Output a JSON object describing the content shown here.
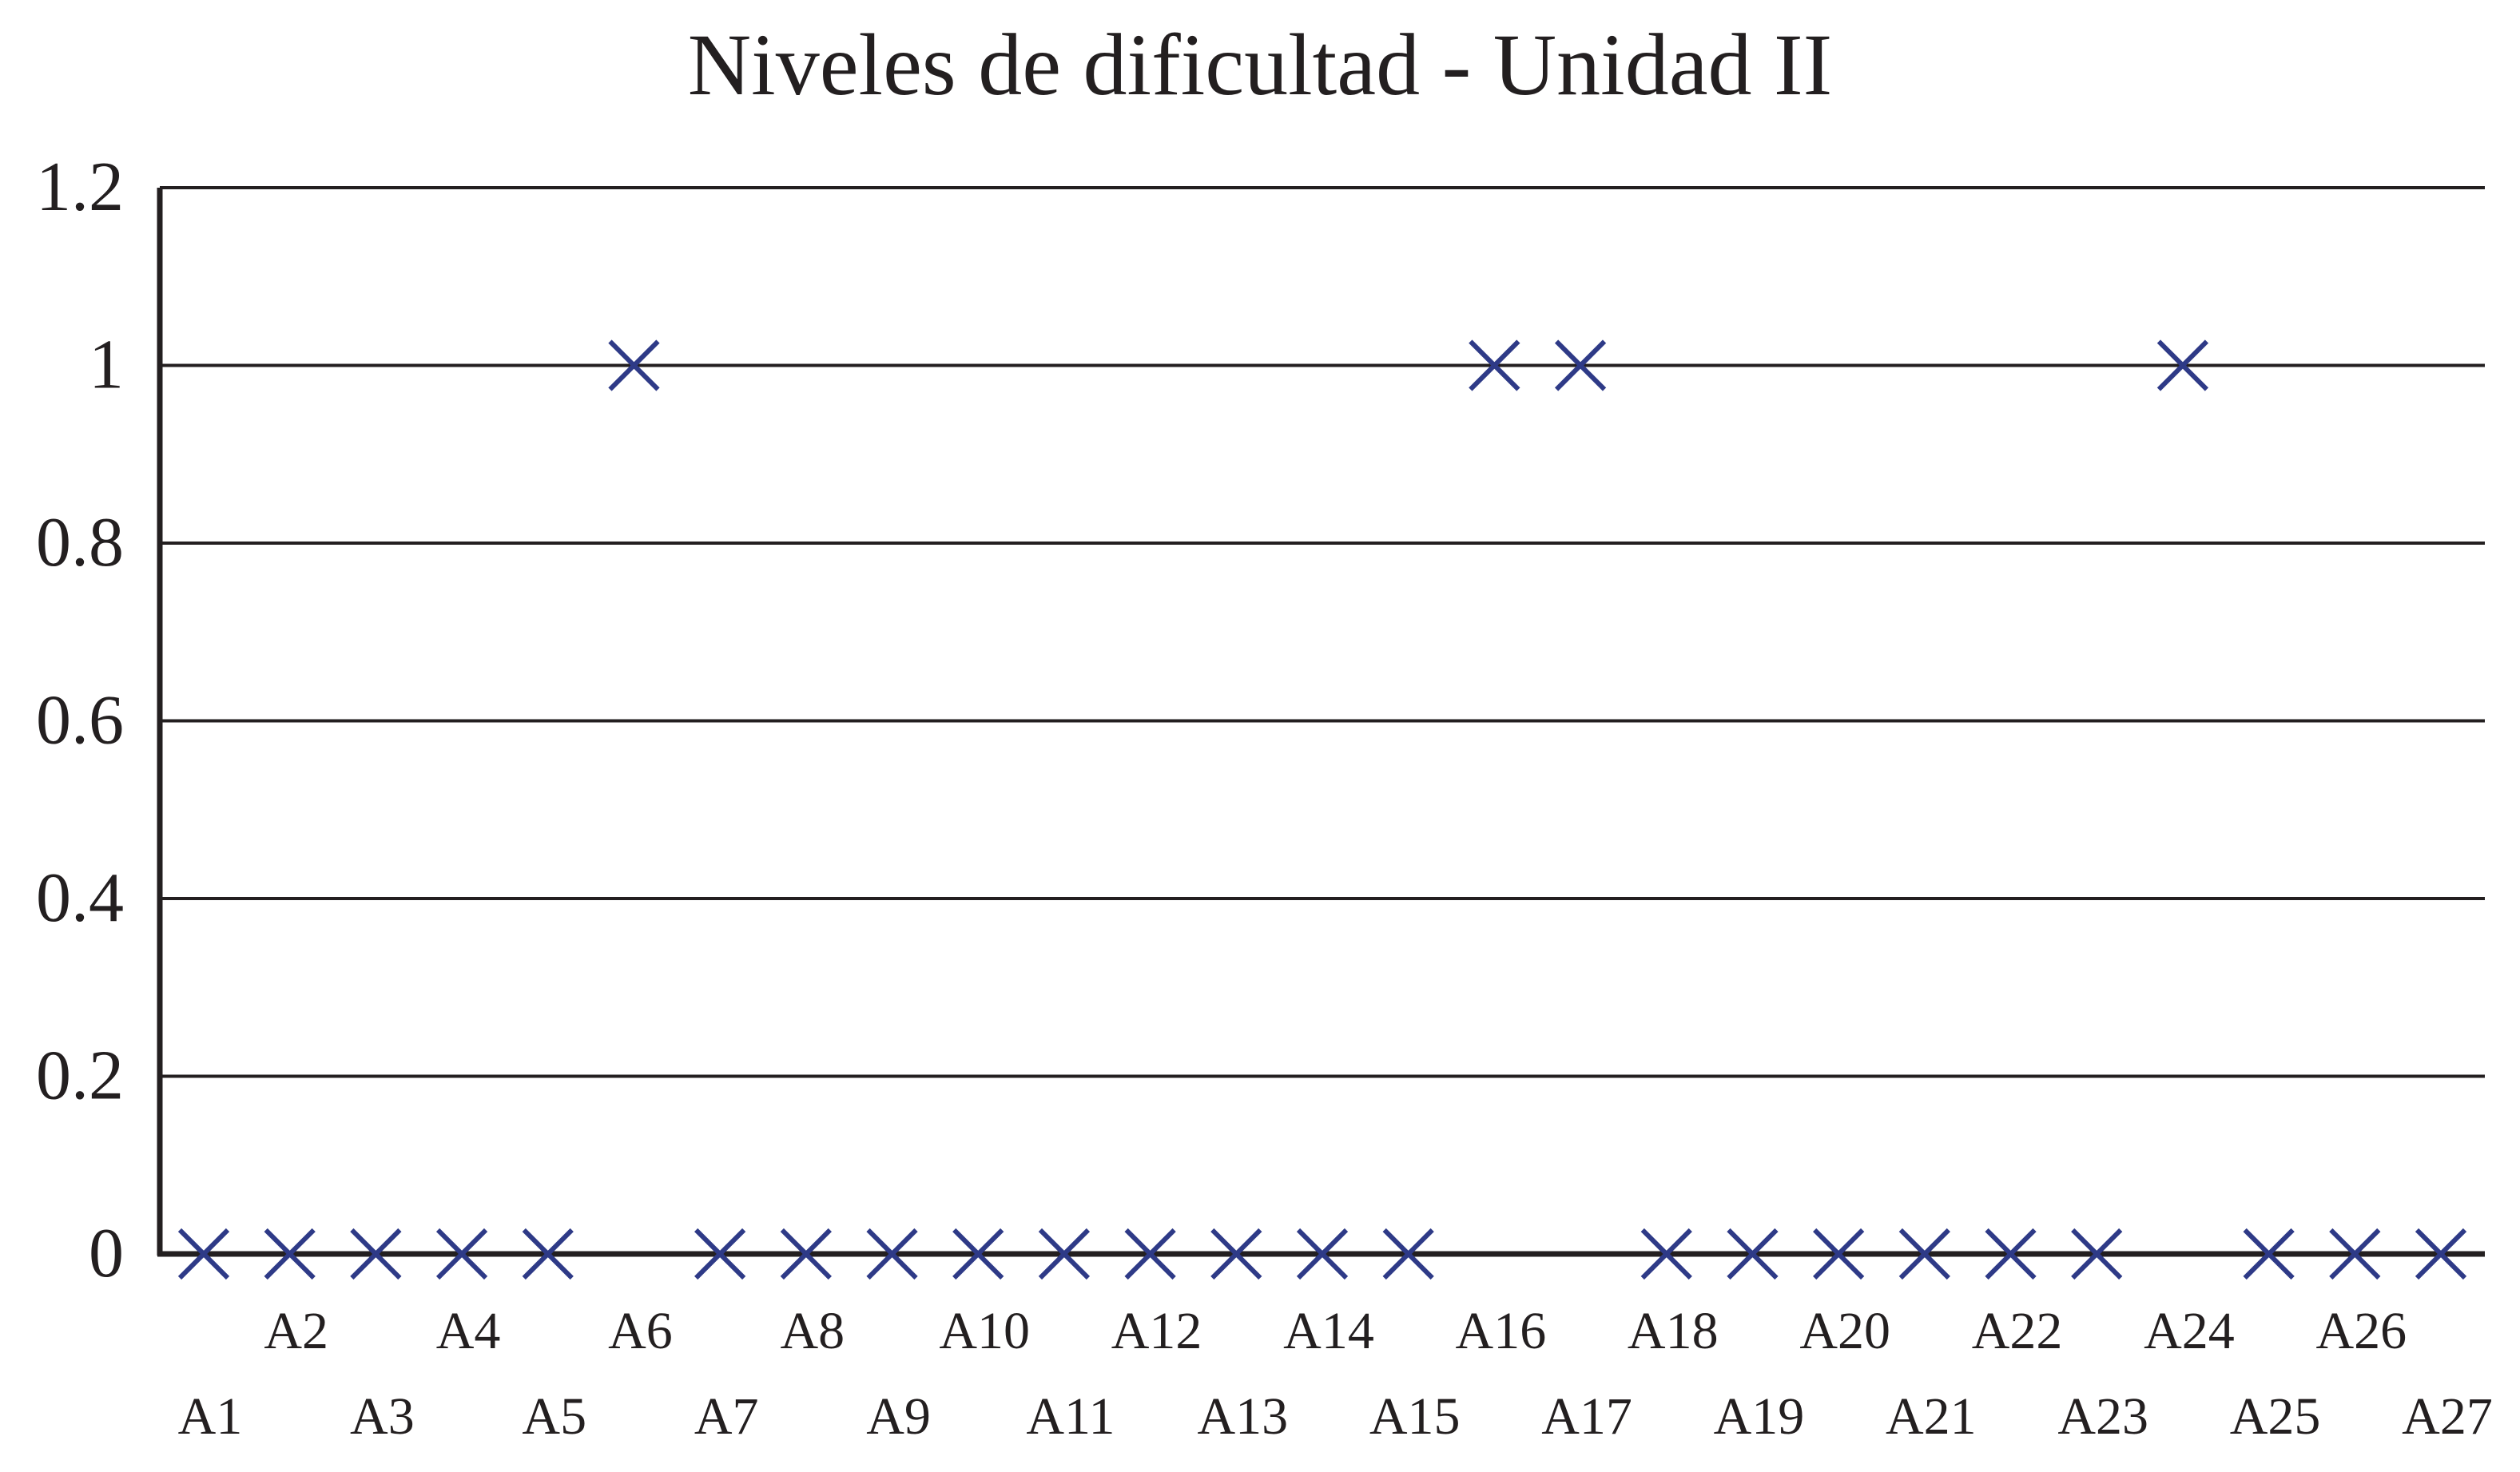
{
  "chart_data": {
    "type": "scatter",
    "title": "Niveles de dificultad - Unidad II",
    "xlabel": "",
    "ylabel": "",
    "ylim": [
      0,
      1.2
    ],
    "yticks": [
      "0",
      "0.2",
      "0.4",
      "0.6",
      "0.8",
      "1",
      "1.2"
    ],
    "grid": true,
    "categories": [
      "A1",
      "A2",
      "A3",
      "A4",
      "A5",
      "A6",
      "A7",
      "A8",
      "A9",
      "A10",
      "A11",
      "A12",
      "A13",
      "A14",
      "A15",
      "A16",
      "A17",
      "A18",
      "A19",
      "A20",
      "A21",
      "A22",
      "A23",
      "A24",
      "A25",
      "A26",
      "A27"
    ],
    "values": [
      0,
      0,
      0,
      0,
      0,
      1,
      0,
      0,
      0,
      0,
      0,
      0,
      0,
      0,
      0,
      1,
      1,
      0,
      0,
      0,
      0,
      0,
      0,
      1,
      0,
      0,
      0
    ],
    "marker": "x",
    "colors": {
      "marker": "#2e3a87",
      "axis": "#231f20",
      "grid": "#231f20"
    }
  }
}
